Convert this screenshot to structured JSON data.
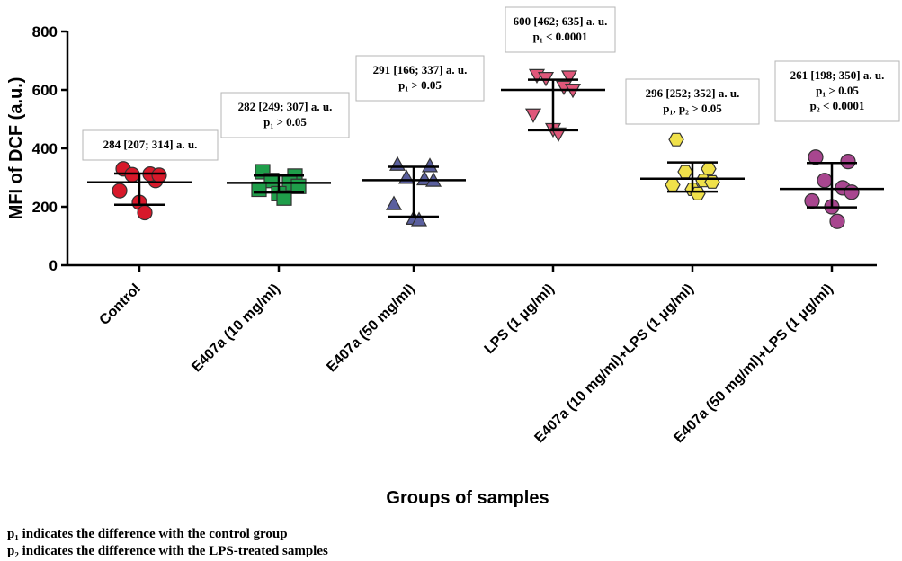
{
  "chart_data": {
    "type": "scatter",
    "ylabel": "MFI of DCF (a.u.)",
    "xlabel": "Groups of samples",
    "ylim": [
      0,
      800
    ],
    "yticks": [
      "0",
      "200",
      "400",
      "600",
      "800"
    ],
    "grid": false,
    "groups": [
      {
        "name": "Control",
        "color": "#d7192a",
        "marker": "circle",
        "median": 284,
        "q1": 207,
        "q3": 314,
        "points": [
          330,
          290,
          310,
          312,
          308,
          255,
          215,
          180
        ],
        "annotation": [
          "284 [207; 314] a. u."
        ]
      },
      {
        "name": "E407a (10 mg/ml)",
        "color": "#1f9e4a",
        "marker": "square",
        "median": 282,
        "q1": 249,
        "q3": 307,
        "points": [
          320,
          305,
          290,
          280,
          270,
          260,
          245,
          230
        ],
        "annotation": [
          "282 [249; 307] a. u.",
          "p₁ > 0.05"
        ]
      },
      {
        "name": "E407a (50 mg/ml)",
        "color": "#5a5f9e",
        "marker": "triangle-up",
        "median": 291,
        "q1": 166,
        "q3": 337,
        "points": [
          345,
          340,
          300,
          295,
          290,
          210,
          160,
          155
        ],
        "annotation": [
          "291 [166; 337] a. u.",
          "p₁ > 0.05"
        ]
      },
      {
        "name": "LPS (1 μg/ml)",
        "color": "#e0577a",
        "marker": "triangle-down",
        "median": 600,
        "q1": 462,
        "q3": 635,
        "points": [
          650,
          645,
          640,
          610,
          600,
          515,
          465,
          450
        ],
        "annotation": [
          "600 [462; 635] a. u.",
          "p₁ < 0.0001"
        ]
      },
      {
        "name": "E407a (10 mg/ml)+LPS (1 μg/ml)",
        "color": "#f0e14a",
        "marker": "hexagon",
        "median": 296,
        "q1": 252,
        "q3": 352,
        "points": [
          430,
          330,
          320,
          290,
          285,
          275,
          260,
          245
        ],
        "annotation": [
          "296 [252; 352] a. u.",
          "p₁, p₂ > 0.05"
        ]
      },
      {
        "name": "E407a (50 mg/ml)+LPS (1 μg/ml)",
        "color": "#a8468f",
        "marker": "circle",
        "median": 261,
        "q1": 198,
        "q3": 350,
        "points": [
          370,
          355,
          290,
          265,
          250,
          220,
          200,
          150
        ],
        "annotation": [
          "261 [198; 350] a. u.",
          "p₁ > 0.05",
          "p₂ < 0.0001"
        ]
      }
    ]
  },
  "footnotes": [
    "p₁ indicates the difference with the control group",
    "p₂ indicates the difference with the LPS-treated samples"
  ]
}
